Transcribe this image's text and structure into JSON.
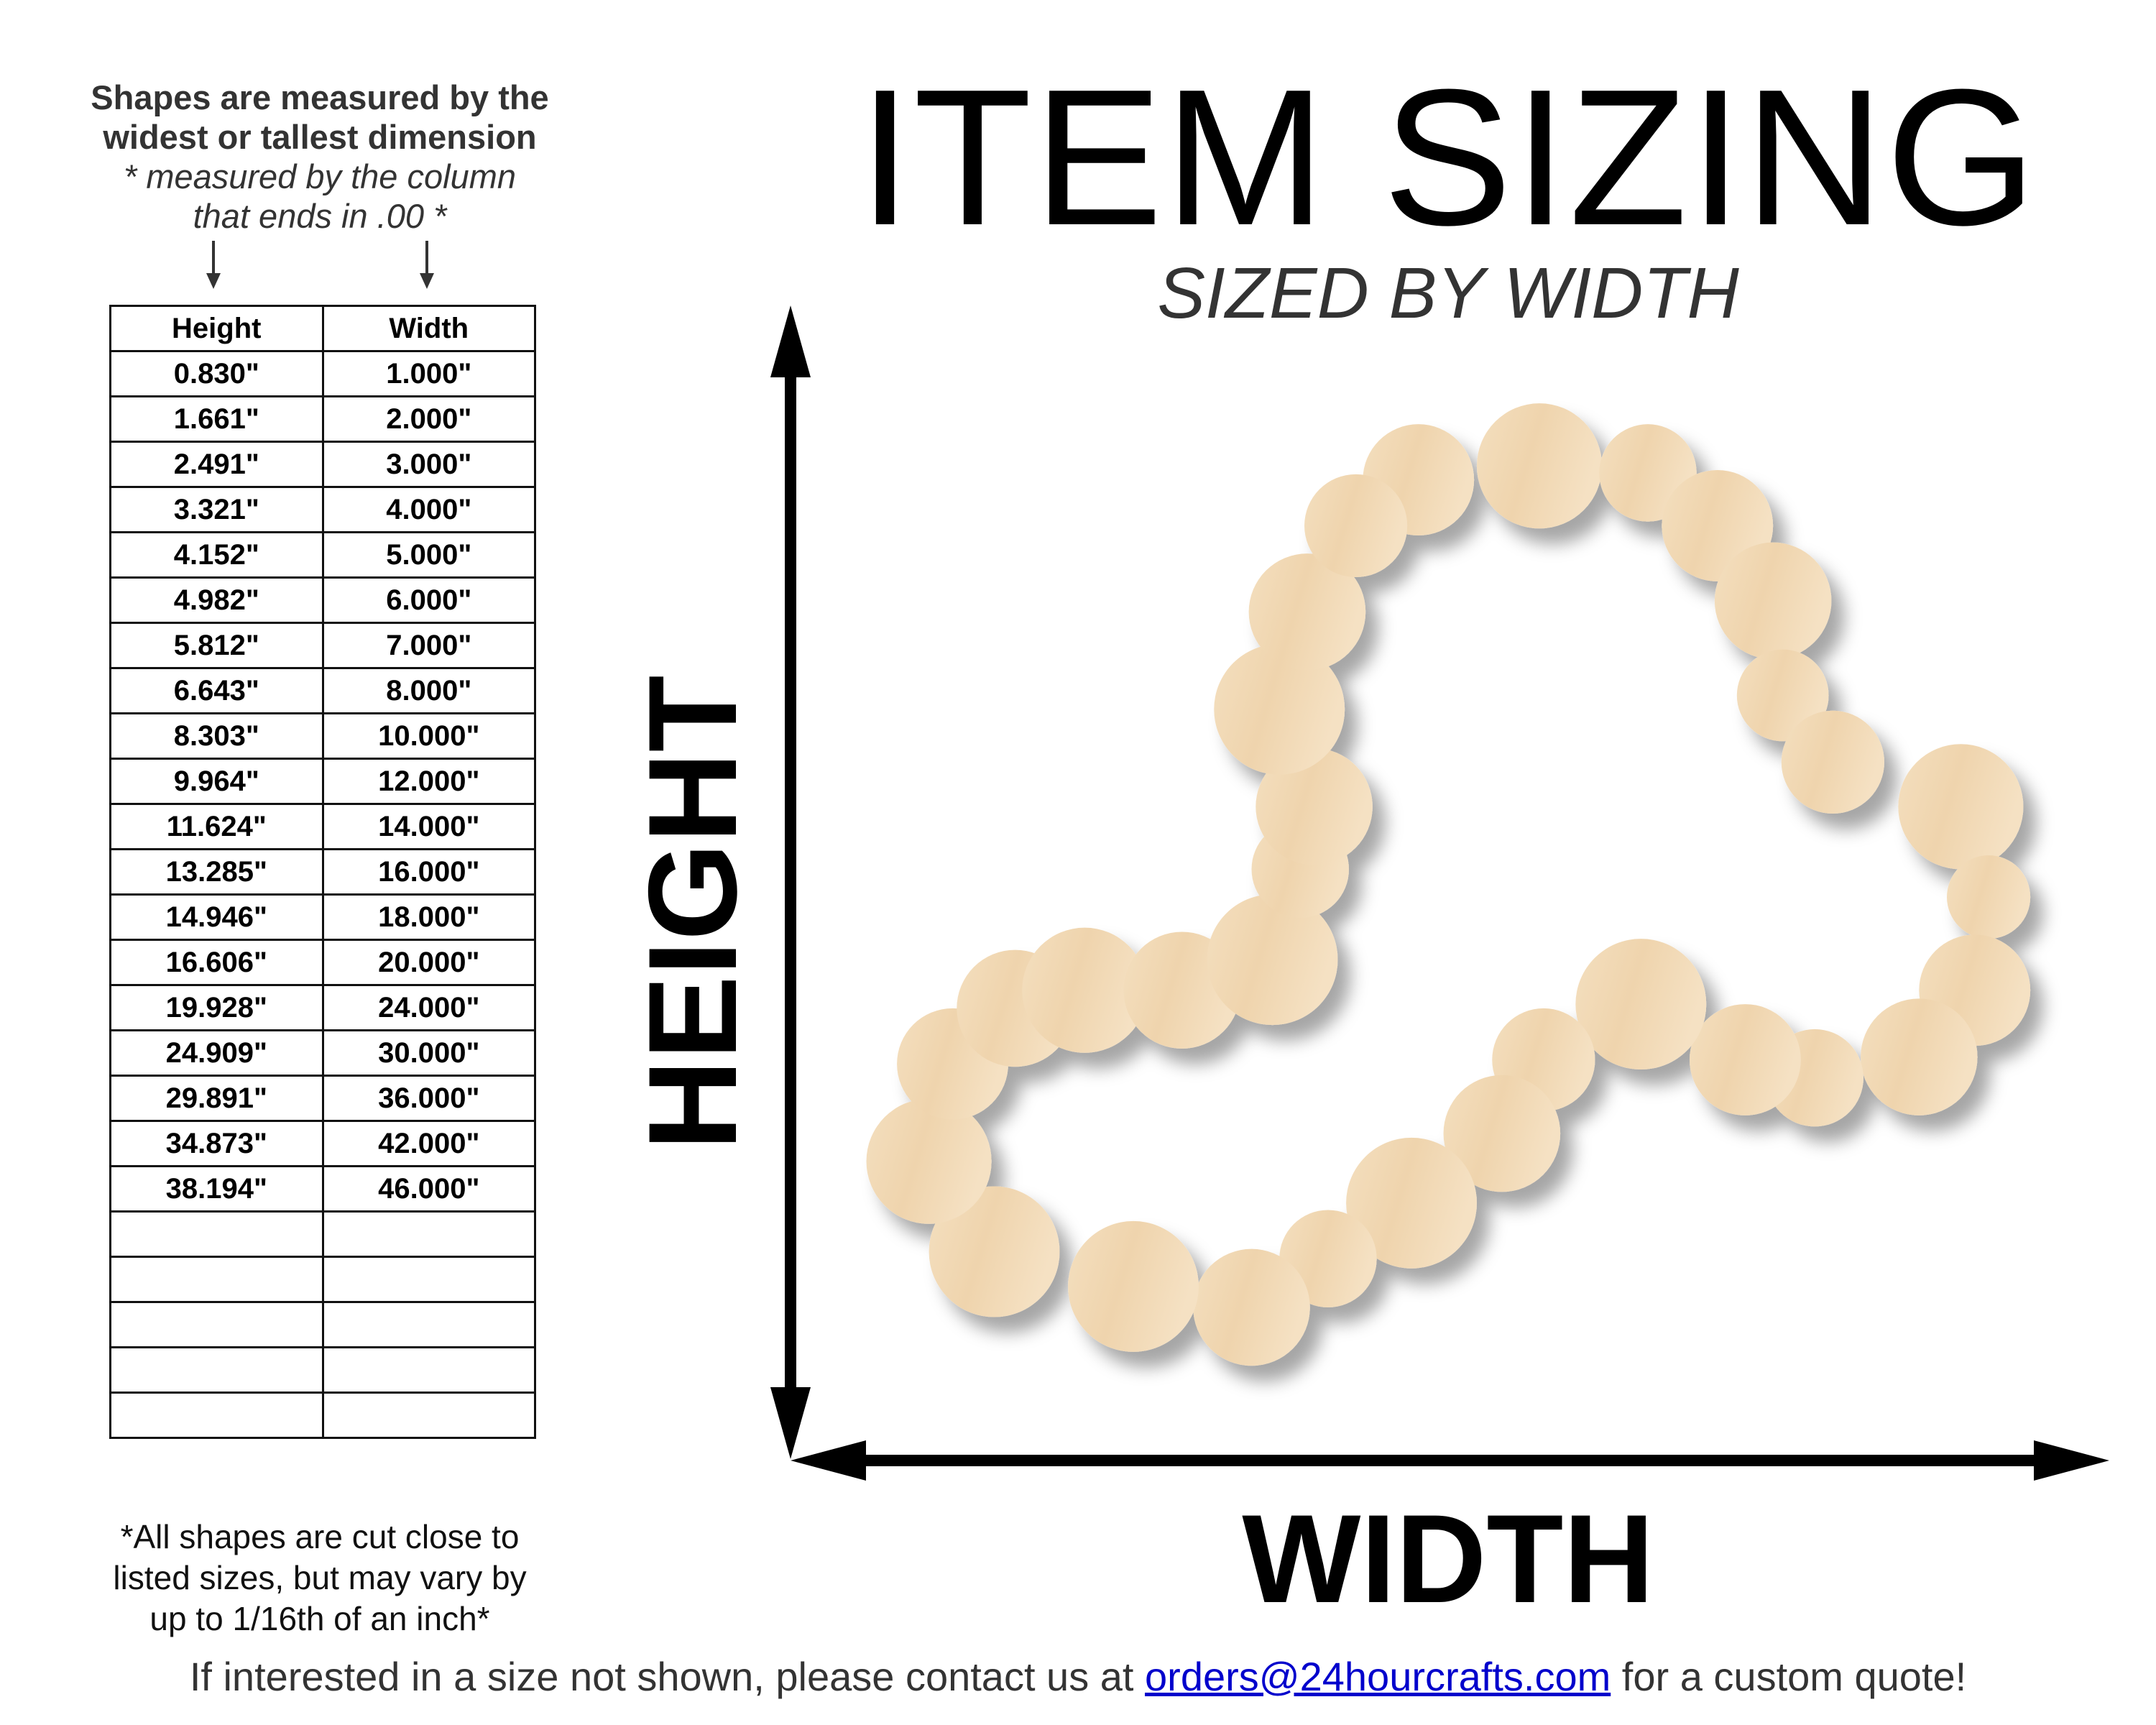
{
  "measure_note": {
    "line1": "Shapes are measured by the",
    "line2": "widest or tallest dimension",
    "line3": "* measured by the column",
    "line4": "that ends in .00 *"
  },
  "table": {
    "headers": [
      "Height",
      "Width"
    ],
    "rows": [
      [
        "0.830\"",
        "1.000\""
      ],
      [
        "1.661\"",
        "2.000\""
      ],
      [
        "2.491\"",
        "3.000\""
      ],
      [
        "3.321\"",
        "4.000\""
      ],
      [
        "4.152\"",
        "5.000\""
      ],
      [
        "4.982\"",
        "6.000\""
      ],
      [
        "5.812\"",
        "7.000\""
      ],
      [
        "6.643\"",
        "8.000\""
      ],
      [
        "8.303\"",
        "10.000\""
      ],
      [
        "9.964\"",
        "12.000\""
      ],
      [
        "11.624\"",
        "14.000\""
      ],
      [
        "13.285\"",
        "16.000\""
      ],
      [
        "14.946\"",
        "18.000\""
      ],
      [
        "16.606\"",
        "20.000\""
      ],
      [
        "19.928\"",
        "24.000\""
      ],
      [
        "24.909\"",
        "30.000\""
      ],
      [
        "29.891\"",
        "36.000\""
      ],
      [
        "34.873\"",
        "42.000\""
      ],
      [
        "38.194\"",
        "46.000\""
      ],
      [
        "",
        ""
      ],
      [
        "",
        ""
      ],
      [
        "",
        ""
      ],
      [
        "",
        ""
      ],
      [
        "",
        ""
      ]
    ]
  },
  "cut_note": {
    "line1": "*All shapes are cut close to",
    "line2": "listed sizes, but may vary by",
    "line3": "up to 1/16th of an inch*"
  },
  "title": "ITEM SIZING",
  "subtitle": "SIZED BY WIDTH",
  "height_label": "HEIGHT",
  "width_label": "WIDTH",
  "footer": {
    "before": "If interested in a size not shown, please contact us at ",
    "email": "orders@24hourcrafts.com",
    "after": " for a custom quote!"
  },
  "colors": {
    "wood": "#f2dcb8",
    "link": "#0000cc"
  },
  "shape": "bubble-heart-outline"
}
